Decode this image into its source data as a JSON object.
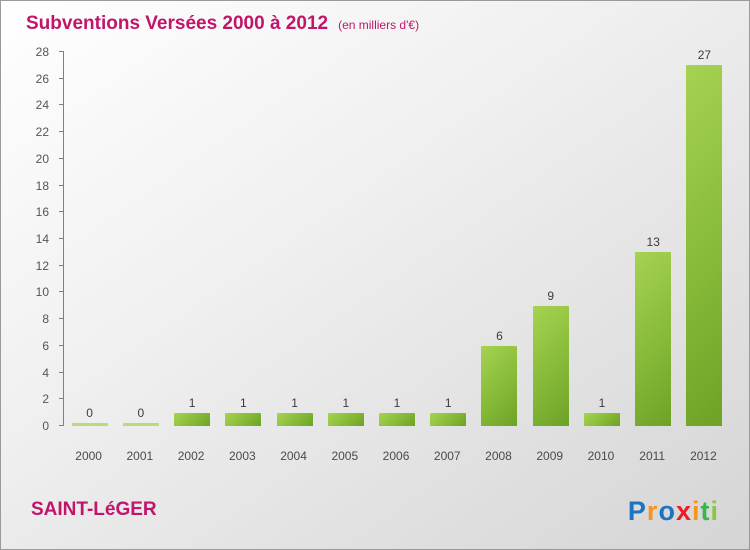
{
  "header": {
    "title": "Subventions Versées 2000 à 2012",
    "subtitle": "(en milliers d'€)"
  },
  "footer": {
    "org": "SAINT-LéGER",
    "logo_letters": [
      {
        "ch": "P",
        "color": "#1e73be"
      },
      {
        "ch": "r",
        "color": "#f7941d"
      },
      {
        "ch": "o",
        "color": "#1e73be"
      },
      {
        "ch": "x",
        "color": "#ed1c24"
      },
      {
        "ch": "i",
        "color": "#f7941d"
      },
      {
        "ch": "t",
        "color": "#39b54a"
      },
      {
        "ch": "i",
        "color": "#8dc63f"
      }
    ]
  },
  "colors": {
    "accent": "#c0156b",
    "bar_light": "#a6d351",
    "bar_dark": "#6ea227",
    "axis": "#808080",
    "label": "#4a4a4a"
  },
  "chart_data": {
    "type": "bar",
    "title": "Subventions Versées 2000 à 2012",
    "subtitle": "(en milliers d'€)",
    "categories": [
      "2000",
      "2001",
      "2002",
      "2003",
      "2004",
      "2005",
      "2006",
      "2007",
      "2008",
      "2009",
      "2010",
      "2011",
      "2012"
    ],
    "values": [
      0,
      0,
      1,
      1,
      1,
      1,
      1,
      1,
      6,
      9,
      1,
      13,
      27
    ],
    "xlabel": "",
    "ylabel": "",
    "ylim": [
      0,
      28
    ],
    "ytick_step": 2,
    "grid": false,
    "legend": false,
    "bar_color": "green-gradient"
  }
}
